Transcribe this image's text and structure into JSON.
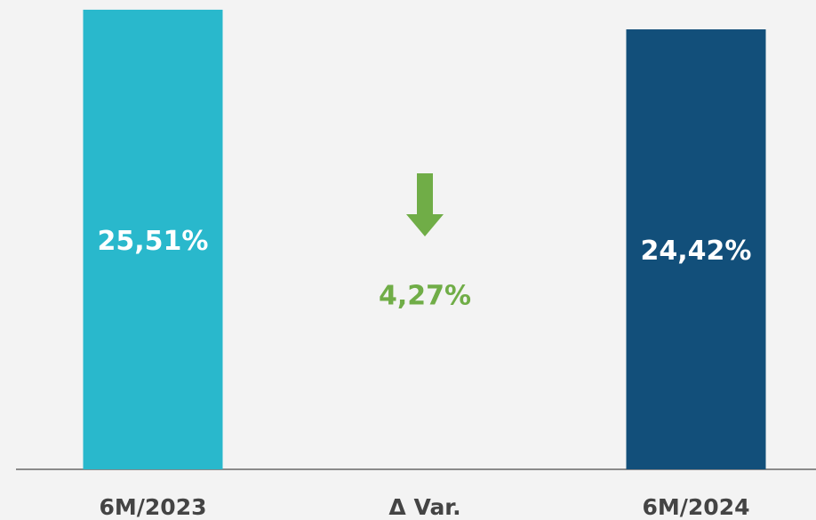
{
  "chart_data": {
    "type": "bar",
    "categories": [
      "6M/2023",
      "6M/2024"
    ],
    "values": [
      25.51,
      24.42
    ],
    "value_labels": [
      "25,51%",
      "24,42%"
    ],
    "colors": [
      "#29b8cc",
      "#124f7a"
    ],
    "ylim": [
      0,
      26
    ],
    "variation": {
      "category": "Δ Var.",
      "value": 4.27,
      "value_label": "4,27%",
      "color": "#70ad47"
    }
  }
}
